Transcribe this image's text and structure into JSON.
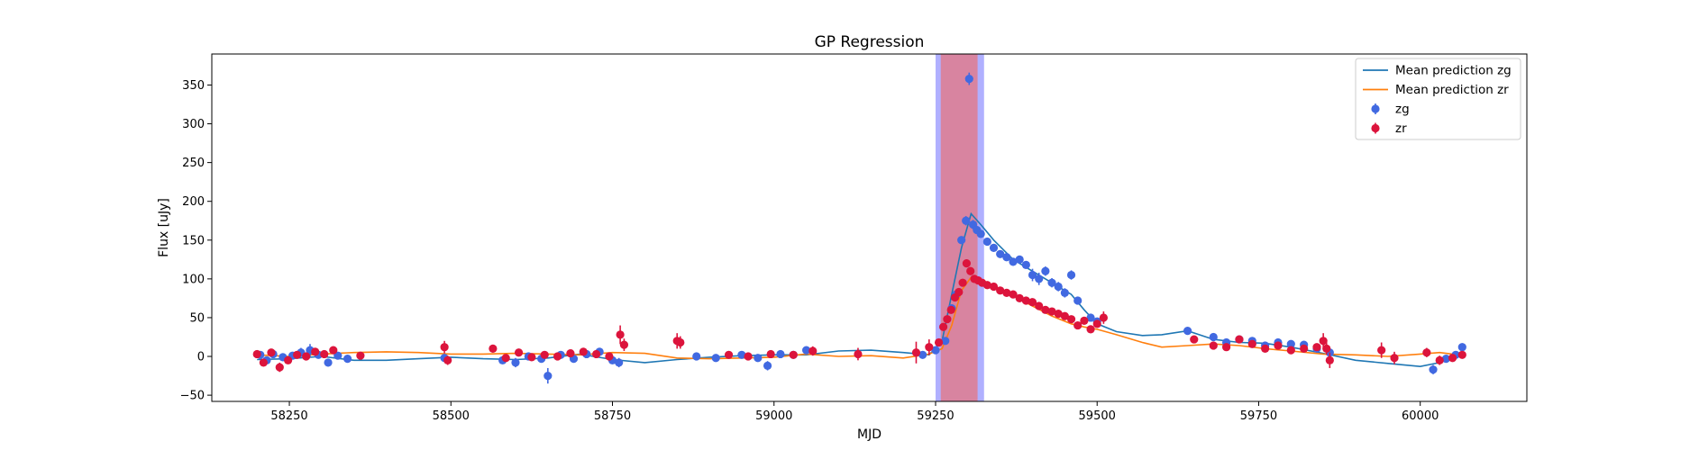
{
  "chart_data": {
    "type": "scatter",
    "title": "GP Regression",
    "xlabel": "MJD",
    "ylabel": "Flux [uJy]",
    "xlim": [
      58130,
      60165
    ],
    "ylim": [
      -58,
      390
    ],
    "xticks": [
      58250,
      58500,
      58750,
      59000,
      59250,
      59500,
      59750,
      60000
    ],
    "yticks": [
      -50,
      0,
      50,
      100,
      150,
      200,
      250,
      300,
      350
    ],
    "grid": false,
    "legend_position": "top-right",
    "legend": [
      {
        "label": "Mean prediction zg",
        "kind": "line",
        "color": "#1f77b4"
      },
      {
        "label": "Mean prediction zr",
        "kind": "line",
        "color": "#ff7f0e"
      },
      {
        "label": "zg",
        "kind": "marker",
        "color": "#4169e1"
      },
      {
        "label": "zr",
        "kind": "marker",
        "color": "#dc143c"
      }
    ],
    "bands": [
      {
        "x0": 59250,
        "x1": 59325,
        "color": "#7b7bff",
        "opacity": 0.6
      },
      {
        "x0": 59258,
        "x1": 59315,
        "color": "#e8737b",
        "opacity": 0.72
      }
    ],
    "series": [
      {
        "name": "Mean prediction zg",
        "type": "line",
        "color": "#1f77b4",
        "x": [
          58200,
          58250,
          58300,
          58350,
          58400,
          58450,
          58500,
          58550,
          58600,
          58650,
          58700,
          58750,
          58800,
          58850,
          58900,
          58950,
          59000,
          59050,
          59100,
          59150,
          59200,
          59240,
          59260,
          59275,
          59290,
          59305,
          59320,
          59340,
          59370,
          59400,
          59430,
          59460,
          59480,
          59500,
          59530,
          59570,
          59600,
          59640,
          59680,
          59720,
          59760,
          59800,
          59850,
          59900,
          59950,
          60000,
          60030,
          60070
        ],
        "y": [
          -4,
          -3,
          0,
          -5,
          -5,
          -3,
          -1,
          -3,
          -4,
          -2,
          3,
          -4,
          -8,
          -4,
          -1,
          1,
          2,
          2,
          7,
          8,
          5,
          2,
          20,
          80,
          140,
          184,
          170,
          150,
          125,
          110,
          95,
          80,
          60,
          42,
          32,
          27,
          28,
          33,
          22,
          18,
          17,
          12,
          4,
          -5,
          -9,
          -13,
          -8,
          3
        ]
      },
      {
        "name": "Mean prediction zr",
        "type": "line",
        "color": "#ff7f0e",
        "x": [
          58200,
          58250,
          58300,
          58350,
          58400,
          58450,
          58500,
          58550,
          58600,
          58650,
          58700,
          58750,
          58800,
          58850,
          58900,
          58950,
          59000,
          59050,
          59100,
          59150,
          59200,
          59240,
          59260,
          59275,
          59290,
          59305,
          59320,
          59340,
          59370,
          59400,
          59430,
          59460,
          59480,
          59500,
          59530,
          59570,
          59600,
          59640,
          59680,
          59720,
          59760,
          59800,
          59850,
          59900,
          59950,
          60000,
          60030,
          60070
        ],
        "y": [
          2,
          0,
          3,
          5,
          6,
          5,
          3,
          3,
          4,
          3,
          2,
          5,
          4,
          -2,
          -3,
          -2,
          -1,
          3,
          0,
          1,
          -2,
          3,
          10,
          40,
          85,
          102,
          95,
          88,
          78,
          65,
          52,
          42,
          38,
          35,
          28,
          18,
          12,
          14,
          16,
          14,
          10,
          7,
          3,
          2,
          0,
          3,
          5,
          1
        ]
      },
      {
        "name": "zg",
        "type": "scatter",
        "color": "#4169e1",
        "x": [
          58205,
          58215,
          58225,
          58240,
          58255,
          58268,
          58282,
          58295,
          58310,
          58325,
          58340,
          58490,
          58580,
          58600,
          58620,
          58640,
          58650,
          58670,
          58690,
          58710,
          58730,
          58750,
          58760,
          58880,
          58910,
          58950,
          58975,
          58990,
          59010,
          59030,
          59050,
          59230,
          59250,
          59265,
          59275,
          59282,
          59290,
          59297,
          59302,
          59308,
          59314,
          59320,
          59330,
          59340,
          59350,
          59360,
          59370,
          59380,
          59390,
          59400,
          59410,
          59420,
          59430,
          59440,
          59450,
          59460,
          59470,
          59490,
          59500,
          59640,
          59680,
          59700,
          59720,
          59740,
          59760,
          59780,
          59800,
          59820,
          59840,
          59860,
          60020,
          60040,
          60055,
          60065
        ],
        "y": [
          2,
          -5,
          3,
          -1,
          1,
          5,
          8,
          2,
          -8,
          1,
          -3,
          -2,
          -5,
          -8,
          0,
          -3,
          -25,
          2,
          -3,
          3,
          6,
          -5,
          -8,
          0,
          -2,
          2,
          -2,
          -12,
          3,
          2,
          8,
          2,
          8,
          20,
          62,
          80,
          150,
          175,
          358,
          170,
          163,
          158,
          148,
          140,
          132,
          128,
          122,
          125,
          118,
          105,
          100,
          110,
          95,
          90,
          82,
          105,
          72,
          50,
          45,
          33,
          25,
          18,
          22,
          20,
          14,
          18,
          16,
          15,
          10,
          5,
          -17,
          -3,
          2,
          12
        ],
        "err": [
          4,
          5,
          4,
          5,
          4,
          6,
          8,
          4,
          5,
          4,
          4,
          5,
          5,
          6,
          4,
          5,
          10,
          4,
          5,
          5,
          4,
          5,
          6,
          4,
          4,
          4,
          4,
          6,
          4,
          4,
          4,
          5,
          4,
          4,
          5,
          5,
          5,
          6,
          8,
          6,
          5,
          5,
          5,
          5,
          5,
          5,
          5,
          5,
          5,
          8,
          8,
          6,
          6,
          6,
          6,
          6,
          5,
          5,
          5,
          4,
          4,
          4,
          4,
          4,
          4,
          4,
          4,
          4,
          5,
          5,
          6,
          4,
          4,
          5
        ]
      },
      {
        "name": "zr",
        "type": "scatter",
        "color": "#dc143c",
        "x": [
          58200,
          58210,
          58222,
          58235,
          58248,
          58262,
          58276,
          58290,
          58304,
          58318,
          58360,
          58490,
          58495,
          58565,
          58585,
          58605,
          58625,
          58645,
          58665,
          58685,
          58705,
          58725,
          58745,
          58762,
          58768,
          58850,
          58855,
          58930,
          58960,
          58995,
          59030,
          59060,
          59130,
          59220,
          59240,
          59255,
          59262,
          59268,
          59274,
          59280,
          59286,
          59292,
          59298,
          59304,
          59310,
          59316,
          59322,
          59330,
          59340,
          59350,
          59360,
          59370,
          59380,
          59390,
          59400,
          59410,
          59420,
          59430,
          59440,
          59450,
          59460,
          59470,
          59480,
          59490,
          59500,
          59510,
          59650,
          59680,
          59700,
          59720,
          59740,
          59760,
          59780,
          59800,
          59820,
          59840,
          59850,
          59855,
          59860,
          59940,
          59960,
          60010,
          60030,
          60050,
          60065
        ],
        "y": [
          3,
          -8,
          5,
          -14,
          -5,
          2,
          0,
          6,
          3,
          8,
          1,
          12,
          -5,
          10,
          -2,
          5,
          -1,
          2,
          0,
          4,
          6,
          3,
          0,
          28,
          15,
          20,
          18,
          2,
          0,
          3,
          2,
          7,
          3,
          5,
          12,
          18,
          38,
          48,
          60,
          76,
          83,
          95,
          120,
          110,
          100,
          98,
          95,
          92,
          90,
          85,
          82,
          80,
          75,
          72,
          70,
          65,
          60,
          58,
          55,
          52,
          48,
          40,
          46,
          35,
          42,
          50,
          22,
          14,
          12,
          22,
          16,
          10,
          14,
          8,
          10,
          12,
          20,
          10,
          -5,
          8,
          -2,
          5,
          -5,
          -2,
          2
        ],
        "err": [
          4,
          4,
          4,
          6,
          5,
          5,
          4,
          4,
          4,
          4,
          4,
          8,
          6,
          5,
          4,
          4,
          4,
          4,
          4,
          4,
          4,
          4,
          4,
          12,
          8,
          10,
          8,
          4,
          4,
          4,
          4,
          6,
          8,
          14,
          10,
          5,
          5,
          5,
          5,
          5,
          5,
          5,
          5,
          5,
          5,
          4,
          4,
          4,
          4,
          4,
          4,
          4,
          4,
          4,
          4,
          4,
          4,
          4,
          4,
          4,
          4,
          4,
          4,
          4,
          4,
          8,
          4,
          4,
          4,
          4,
          4,
          4,
          4,
          4,
          4,
          4,
          10,
          8,
          10,
          10,
          8,
          6,
          6,
          4,
          4
        ]
      }
    ]
  }
}
